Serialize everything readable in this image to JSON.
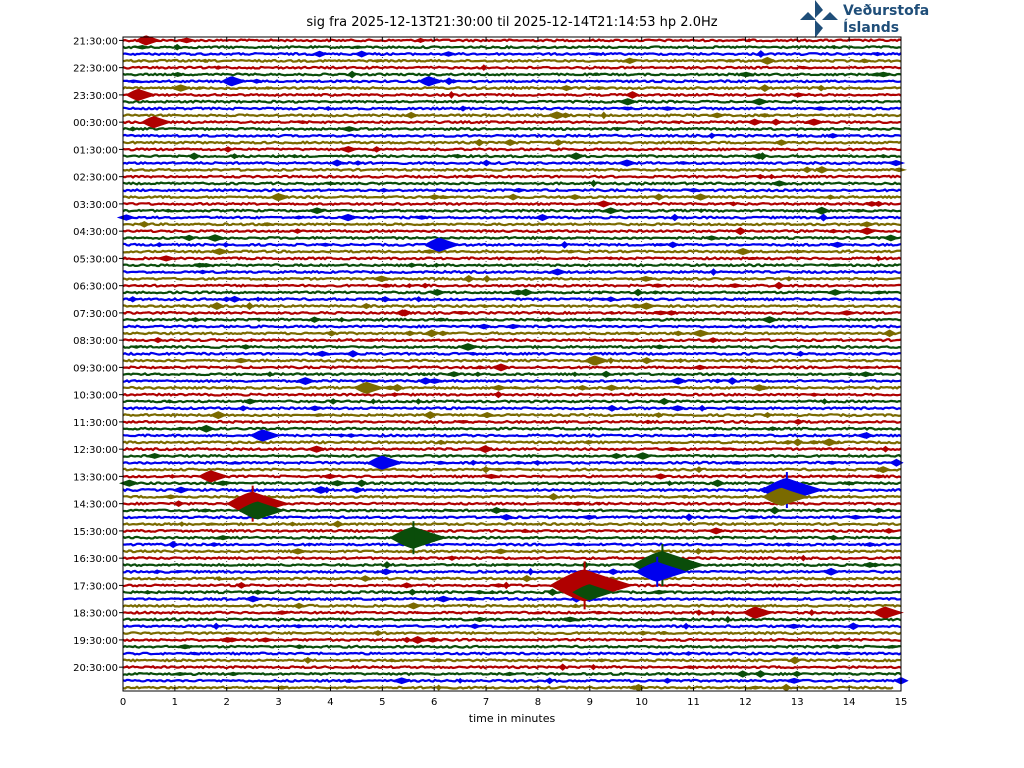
{
  "chart_data": {
    "type": "line",
    "title": "sig fra 2025-12-13T21:30:00 til 2025-12-14T21:14:53 hp 2.0Hz",
    "xlabel": "time in minutes",
    "ylabel": "",
    "xlim": [
      0,
      15
    ],
    "x_ticks": [
      "0",
      "1",
      "2",
      "3",
      "4",
      "5",
      "6",
      "7",
      "8",
      "9",
      "10",
      "11",
      "12",
      "13",
      "14",
      "15"
    ],
    "row_labels": [
      "21:30:00",
      "22:30:00",
      "23:30:00",
      "00:30:00",
      "01:30:00",
      "02:30:00",
      "03:30:00",
      "04:30:00",
      "05:30:00",
      "06:30:00",
      "07:30:00",
      "08:30:00",
      "09:30:00",
      "10:30:00",
      "11:30:00",
      "12:30:00",
      "13:30:00",
      "14:30:00",
      "15:30:00",
      "16:30:00",
      "17:30:00",
      "18:30:00",
      "19:30:00",
      "20:30:00"
    ],
    "rows_per_label": 4,
    "total_rows": 96,
    "last_row_end_minute": 14.88,
    "grid": "vertical dotted at each minute",
    "trace_colors": [
      "#b00000",
      "#0a4d0a",
      "#0000ee",
      "#7a6a00"
    ],
    "events": [
      {
        "row": 0,
        "minute": 0.45,
        "amp": 5
      },
      {
        "row": 6,
        "minute": 2.1,
        "amp": 5
      },
      {
        "row": 6,
        "minute": 5.9,
        "amp": 5
      },
      {
        "row": 8,
        "minute": 0.3,
        "amp": 6
      },
      {
        "row": 12,
        "minute": 0.6,
        "amp": 6
      },
      {
        "row": 23,
        "minute": 3.0,
        "amp": 4
      },
      {
        "row": 30,
        "minute": 6.1,
        "amp": 7
      },
      {
        "row": 47,
        "minute": 9.1,
        "amp": 5
      },
      {
        "row": 51,
        "minute": 4.7,
        "amp": 6
      },
      {
        "row": 58,
        "minute": 2.7,
        "amp": 6
      },
      {
        "row": 62,
        "minute": 5.0,
        "amp": 7
      },
      {
        "row": 64,
        "minute": 1.7,
        "amp": 6
      },
      {
        "row": 66,
        "minute": 12.8,
        "amp": 12
      },
      {
        "row": 67,
        "minute": 12.7,
        "amp": 9
      },
      {
        "row": 68,
        "minute": 2.5,
        "amp": 12
      },
      {
        "row": 69,
        "minute": 2.6,
        "amp": 9
      },
      {
        "row": 73,
        "minute": 5.6,
        "amp": 11
      },
      {
        "row": 77,
        "minute": 10.4,
        "amp": 14
      },
      {
        "row": 78,
        "minute": 10.3,
        "amp": 10
      },
      {
        "row": 80,
        "minute": 8.9,
        "amp": 16
      },
      {
        "row": 81,
        "minute": 9.0,
        "amp": 8
      },
      {
        "row": 84,
        "minute": 12.2,
        "amp": 6
      },
      {
        "row": 84,
        "minute": 14.7,
        "amp": 6
      }
    ]
  },
  "logo": {
    "line1": "Veðurstofa",
    "line2": "Íslands",
    "color": "#1f4e79"
  }
}
